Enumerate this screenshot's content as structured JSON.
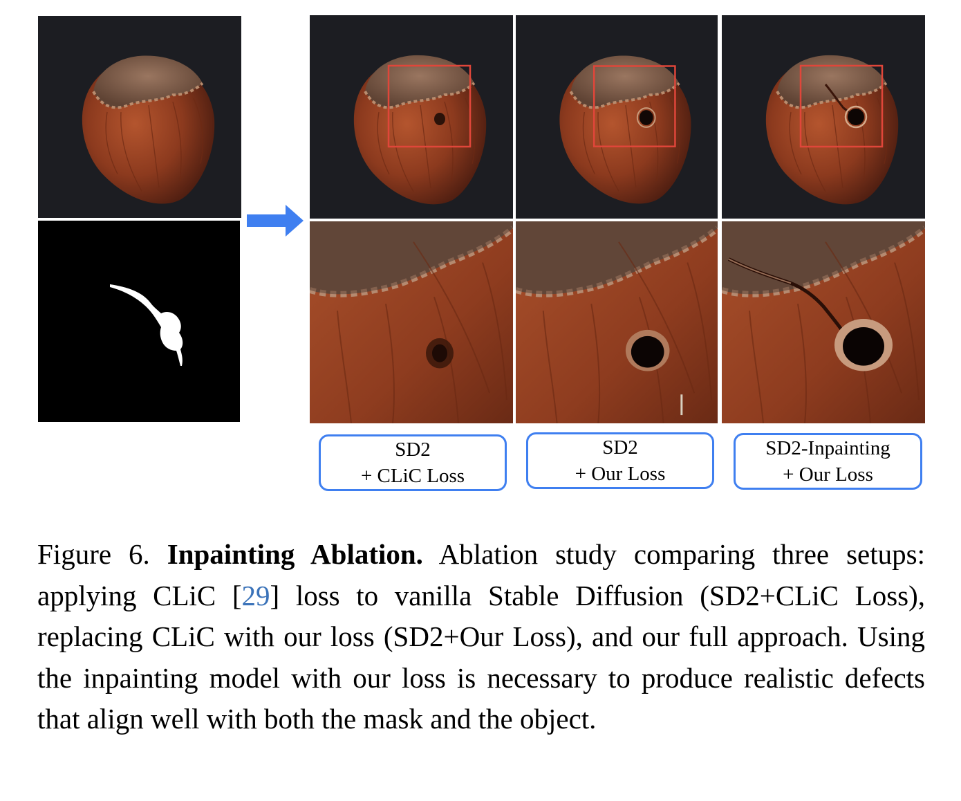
{
  "figure": {
    "labels": [
      {
        "line1": "SD2",
        "line2": "+ CLiC Loss"
      },
      {
        "line1": "SD2",
        "line2": "+ Our Loss"
      },
      {
        "line1": "SD2-Inpainting",
        "line2": "+ Our Loss"
      }
    ],
    "caption": {
      "prefix": "Figure 6.",
      "title": "Inpainting Ablation.",
      "text_before_cite": "Ablation study comparing three setups: applying CLiC [",
      "cite": "29",
      "text_after_cite": "] loss to vanilla Stable Diffusion (SD2+CLiC Loss), replacing CLiC with our loss (SD2+Our Loss), and our full approach. Using the inpainting model with our loss is necessary to produce realistic defects that align well with both the mask and the object."
    },
    "colors": {
      "highlight_box": "#e0463a",
      "label_border": "#3f7ff0",
      "arrow": "#3f7ff0",
      "citation": "#3b73b9"
    }
  }
}
